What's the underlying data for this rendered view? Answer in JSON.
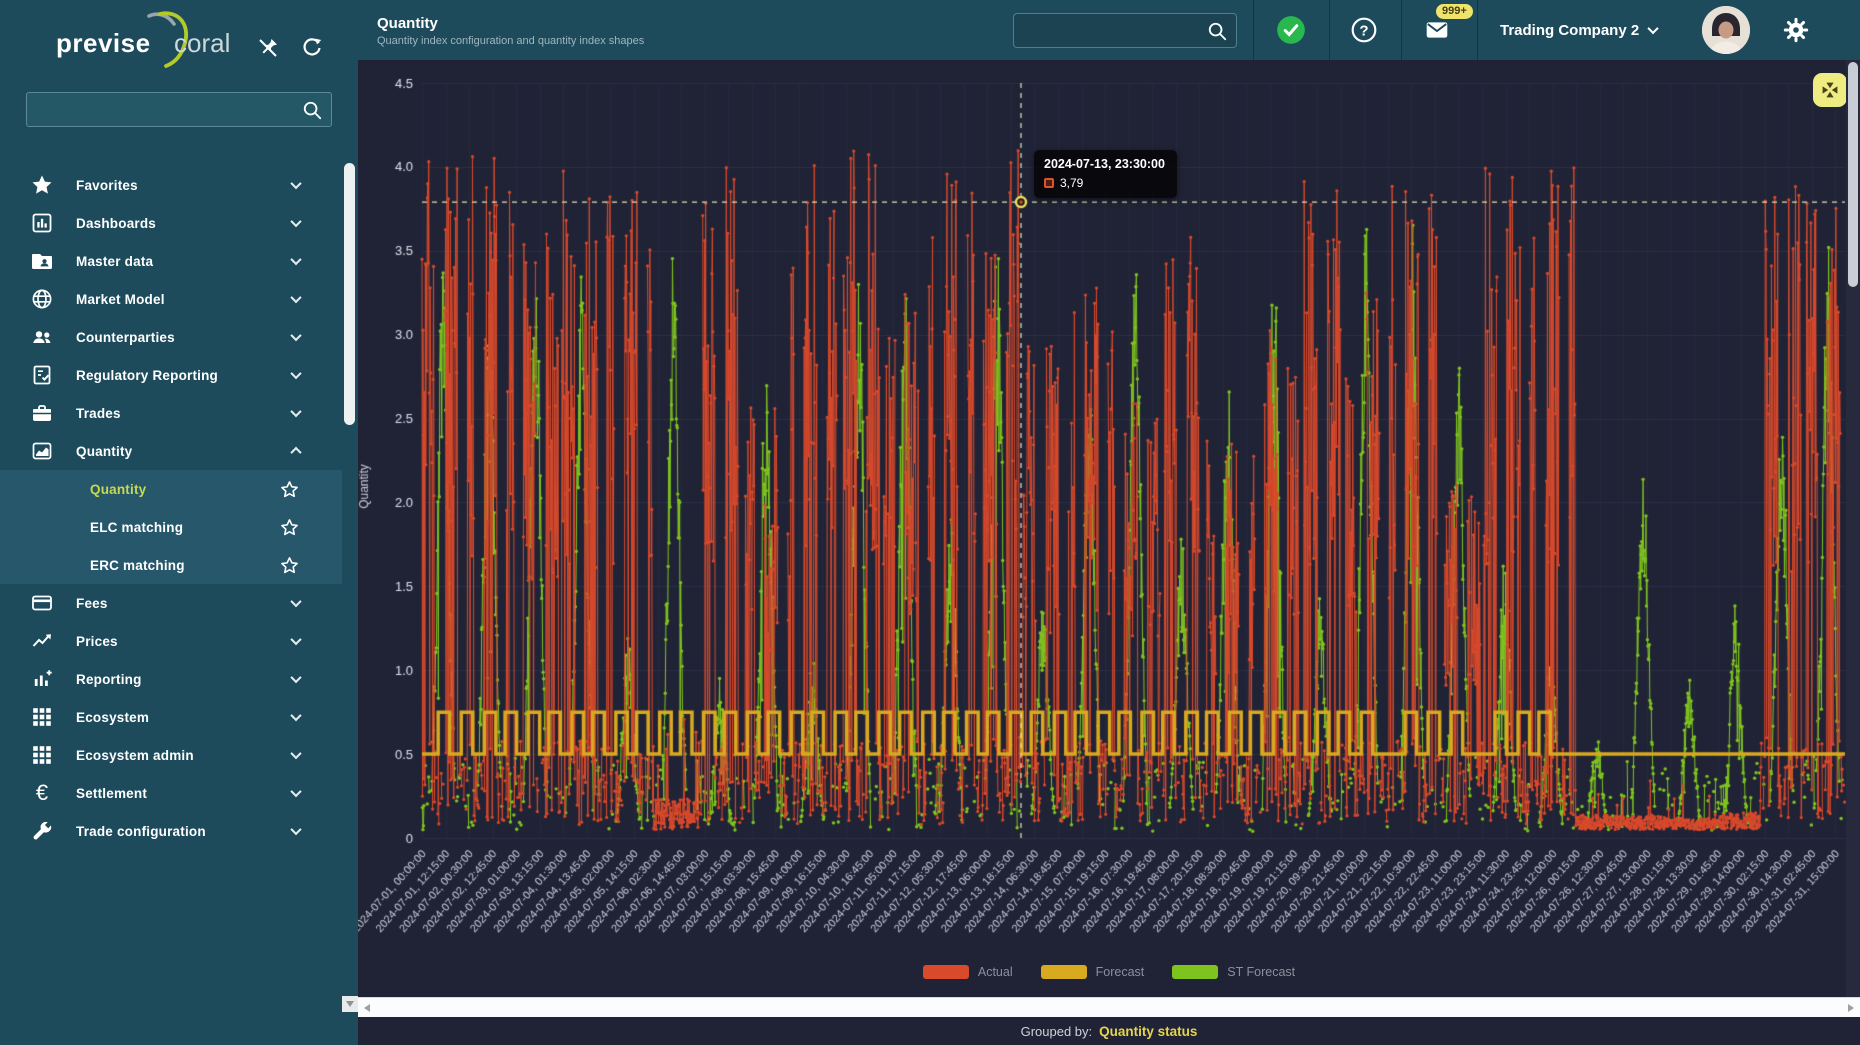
{
  "app": {
    "logo_primary": "previse",
    "logo_secondary": "coral"
  },
  "header": {
    "title": "Quantity",
    "subtitle": "Quantity index configuration and quantity index shapes",
    "search": {
      "value": ""
    },
    "mail_badge": "999+",
    "company": "Trading Company 2"
  },
  "sidebar": {
    "search": {
      "value": ""
    },
    "items": [
      {
        "label": "Favorites",
        "icon": "star",
        "state": "collapsed"
      },
      {
        "label": "Dashboards",
        "icon": "dashboard",
        "state": "collapsed"
      },
      {
        "label": "Master data",
        "icon": "folder-user",
        "state": "collapsed"
      },
      {
        "label": "Market Model",
        "icon": "globe",
        "state": "collapsed"
      },
      {
        "label": "Counterparties",
        "icon": "people",
        "state": "collapsed"
      },
      {
        "label": "Regulatory Reporting",
        "icon": "report-check",
        "state": "collapsed"
      },
      {
        "label": "Trades",
        "icon": "briefcase",
        "state": "collapsed"
      },
      {
        "label": "Quantity",
        "icon": "area-chart",
        "state": "expanded",
        "children": [
          {
            "label": "Quantity",
            "active": true
          },
          {
            "label": "ELC matching",
            "active": false
          },
          {
            "label": "ERC matching",
            "active": false
          }
        ]
      },
      {
        "label": "Fees",
        "icon": "credit-card",
        "state": "collapsed"
      },
      {
        "label": "Prices",
        "icon": "trending-up",
        "state": "collapsed"
      },
      {
        "label": "Reporting",
        "icon": "chart-add",
        "state": "collapsed"
      },
      {
        "label": "Ecosystem",
        "icon": "grid",
        "state": "collapsed"
      },
      {
        "label": "Ecosystem admin",
        "icon": "grid",
        "state": "collapsed"
      },
      {
        "label": "Settlement",
        "icon": "euro",
        "state": "collapsed"
      },
      {
        "label": "Trade configuration",
        "icon": "wrench",
        "state": "collapsed"
      }
    ]
  },
  "chart_data": {
    "type": "line",
    "ylabel": "Quantity",
    "ylim": [
      0,
      4.5
    ],
    "ytick_step": 0.5,
    "ytick_labels": [
      "0",
      "0.5",
      "1.0",
      "1.5",
      "2.0",
      "2.5",
      "3.0",
      "3.5",
      "4.0",
      "4.5"
    ],
    "x_tick_interval_hours": 12.25,
    "x_range_hours": 740,
    "xticklabels": [
      "2024-07-01, 00:00:00",
      "2024-07-01, 12:15:00",
      "2024-07-02, 00:30:00",
      "2024-07-02, 12:45:00",
      "2024-07-03, 01:00:00",
      "2024-07-03, 13:15:00",
      "2024-07-04, 01:30:00",
      "2024-07-04, 13:45:00",
      "2024-07-05, 02:00:00",
      "2024-07-05, 14:15:00",
      "2024-07-06, 02:30:00",
      "2024-07-06, 14:45:00",
      "2024-07-07, 03:00:00",
      "2024-07-07, 15:15:00",
      "2024-07-08, 03:30:00",
      "2024-07-08, 15:45:00",
      "2024-07-09, 04:00:00",
      "2024-07-09, 16:15:00",
      "2024-07-10, 04:30:00",
      "2024-07-10, 16:45:00",
      "2024-07-11, 05:00:00",
      "2024-07-11, 17:15:00",
      "2024-07-12, 05:30:00",
      "2024-07-12, 17:45:00",
      "2024-07-13, 06:00:00",
      "2024-07-13, 18:15:00",
      "2024-07-14, 06:30:00",
      "2024-07-14, 18:45:00",
      "2024-07-15, 07:00:00",
      "2024-07-15, 19:15:00",
      "2024-07-16, 07:30:00",
      "2024-07-16, 19:45:00",
      "2024-07-17, 08:00:00",
      "2024-07-17, 20:15:00",
      "2024-07-18, 08:30:00",
      "2024-07-18, 20:45:00",
      "2024-07-19, 09:00:00",
      "2024-07-19, 21:15:00",
      "2024-07-20, 09:30:00",
      "2024-07-20, 21:45:00",
      "2024-07-21, 10:00:00",
      "2024-07-21, 22:15:00",
      "2024-07-22, 10:30:00",
      "2024-07-22, 22:45:00",
      "2024-07-23, 11:00:00",
      "2024-07-23, 23:15:00",
      "2024-07-24, 11:30:00",
      "2024-07-24, 23:45:00",
      "2024-07-25, 12:00:00",
      "2024-07-26, 00:15:00",
      "2024-07-26, 12:30:00",
      "2024-07-27, 00:45:00",
      "2024-07-27, 13:00:00",
      "2024-07-28, 01:15:00",
      "2024-07-28, 13:30:00",
      "2024-07-29, 01:45:00",
      "2024-07-29, 14:00:00",
      "2024-07-30, 02:15:00",
      "2024-07-30, 14:30:00",
      "2024-07-31, 02:45:00",
      "2024-07-31, 15:00:00"
    ],
    "legend": [
      {
        "label": "Actual",
        "color": "#d9492b"
      },
      {
        "label": "Forecast",
        "color": "#d9a91f"
      },
      {
        "label": "ST Forecast",
        "color": "#7fc41e"
      }
    ],
    "series": [
      {
        "name": "Actual",
        "color": "#d9492b",
        "style": "spiky-markers",
        "daily_peak_estimates": [
          4.05,
          4.1,
          3.6,
          4.0,
          3.9,
          0.9,
          4.0,
          2.6,
          4.1,
          4.1,
          3.3,
          4.05,
          4.1,
          3.0,
          3.3,
          2.6,
          3.6,
          2.4,
          3.1,
          4.0,
          3.3,
          3.9,
          2.2,
          4.0,
          4.05,
          0.45,
          0.4,
          0.35,
          0.5,
          3.9,
          3.85
        ]
      },
      {
        "name": "Forecast",
        "color": "#d9a91f",
        "style": "step",
        "low_value": 0.5,
        "high_value": 0.75,
        "high_blocks_days": [
          [
            0.35,
            0.6
          ],
          [
            0.85,
            1.1
          ],
          [
            1.35,
            1.6
          ],
          [
            1.8,
            2.05
          ],
          [
            2.3,
            2.55
          ],
          [
            2.75,
            3.0
          ],
          [
            3.25,
            3.5
          ],
          [
            3.7,
            3.95
          ],
          [
            4.2,
            4.45
          ],
          [
            4.65,
            4.9
          ],
          [
            5.15,
            5.4
          ],
          [
            5.6,
            5.85
          ],
          [
            6.1,
            6.35
          ],
          [
            6.55,
            6.8
          ],
          [
            7.05,
            7.3
          ],
          [
            7.5,
            7.75
          ],
          [
            8.0,
            8.25
          ],
          [
            8.45,
            8.7
          ],
          [
            8.95,
            9.2
          ],
          [
            9.4,
            9.65
          ],
          [
            9.9,
            10.15
          ],
          [
            10.35,
            10.6
          ],
          [
            10.85,
            11.1
          ],
          [
            11.3,
            11.55
          ],
          [
            11.8,
            12.05
          ],
          [
            12.25,
            12.5
          ],
          [
            12.75,
            13.0
          ],
          [
            13.2,
            13.45
          ],
          [
            13.7,
            13.95
          ],
          [
            14.15,
            14.4
          ],
          [
            14.65,
            14.9
          ],
          [
            15.1,
            15.35
          ],
          [
            15.6,
            15.85
          ],
          [
            16.05,
            16.3
          ],
          [
            16.55,
            16.8
          ],
          [
            17.0,
            17.25
          ],
          [
            17.5,
            17.75
          ],
          [
            17.95,
            18.2
          ],
          [
            18.45,
            18.7
          ],
          [
            18.9,
            19.15
          ],
          [
            19.4,
            19.65
          ],
          [
            19.85,
            20.1
          ],
          [
            20.35,
            20.6
          ],
          [
            21.3,
            21.55
          ],
          [
            21.8,
            22.05
          ],
          [
            22.3,
            22.55
          ],
          [
            23.25,
            23.5
          ],
          [
            23.75,
            24.0
          ],
          [
            24.2,
            24.45
          ]
        ]
      },
      {
        "name": "ST Forecast",
        "color": "#7fc41e",
        "style": "spiky-markers",
        "daily_peak_estimates": [
          2.9,
          2.75,
          2.9,
          2.85,
          1.0,
          3.0,
          0.8,
          2.5,
          0.9,
          2.85,
          2.9,
          1.6,
          3.0,
          1.2,
          2.3,
          2.9,
          1.5,
          2.3,
          2.9,
          1.2,
          3.1,
          3.1,
          2.4,
          1.4,
          0.9,
          0.5,
          1.9,
          0.8,
          1.2,
          2.2,
          3.0
        ]
      }
    ],
    "crosshair": {
      "time_hours": 311.5,
      "value": 3.79
    },
    "tooltip": {
      "title": "2024-07-13, 23:30:00",
      "series": "Actual",
      "value_label": "3,79"
    }
  },
  "footer": {
    "grouped_by_label": "Grouped by:",
    "grouped_by_value": "Quantity status"
  },
  "colors": {
    "header_teal": "#1d4b5c",
    "submenu_teal": "#26576b",
    "chart_bg": "#202335",
    "actual": "#d9492b",
    "forecast": "#d9a91f",
    "st_forecast": "#7fc41e",
    "active_item": "#c6d94f",
    "badge": "#efe36b",
    "compress_button": "#efec82"
  }
}
